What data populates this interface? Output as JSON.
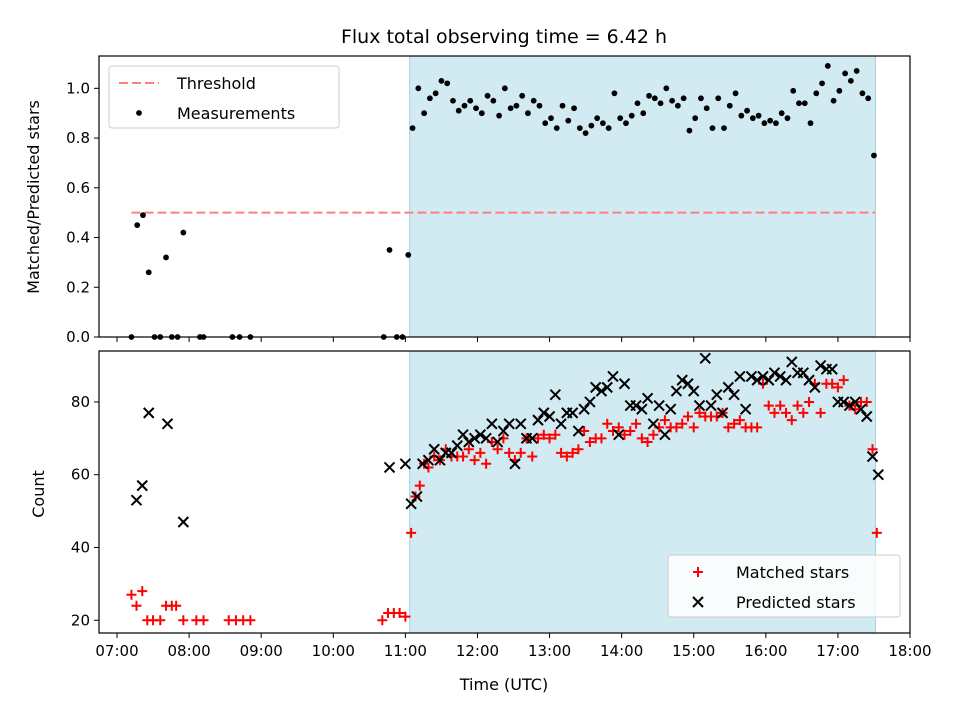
{
  "figure": {
    "title": "Flux total observing time = 6.42 h"
  },
  "chart_data": [
    {
      "type": "scatter",
      "panel": "top",
      "xlabel": "",
      "ylabel": "Matched/Predicted stars",
      "x_unit": "hours UTC",
      "xlim": [
        6.75,
        18.0
      ],
      "ylim": [
        0.0,
        1.13
      ],
      "yticks": [
        0.0,
        0.2,
        0.4,
        0.6,
        0.8,
        1.0
      ],
      "ytick_labels": [
        "0.0",
        "0.2",
        "0.4",
        "0.6",
        "0.8",
        "1.0"
      ],
      "shaded_span": [
        11.06,
        17.52
      ],
      "shade_color": "#add8e6",
      "threshold": {
        "name": "Threshold",
        "value": 0.5,
        "color": "#ff7f7f"
      },
      "legend": {
        "position": "top-left",
        "entries": [
          "Threshold",
          "Measurements"
        ]
      },
      "series": [
        {
          "name": "Measurements",
          "color": "#000000",
          "marker": "dot",
          "x": [
            7.2,
            7.28,
            7.36,
            7.44,
            7.52,
            7.6,
            7.68,
            7.76,
            7.84,
            7.92,
            8.15,
            8.2,
            8.6,
            8.7,
            8.85,
            10.7,
            10.78,
            10.88,
            10.96,
            11.04,
            11.1,
            11.18,
            11.26,
            11.34,
            11.42,
            11.5,
            11.58,
            11.66,
            11.74,
            11.82,
            11.9,
            11.98,
            12.06,
            12.14,
            12.22,
            12.3,
            12.38,
            12.46,
            12.54,
            12.62,
            12.7,
            12.78,
            12.86,
            12.94,
            13.02,
            13.1,
            13.18,
            13.26,
            13.34,
            13.42,
            13.5,
            13.58,
            13.66,
            13.74,
            13.82,
            13.9,
            13.98,
            14.06,
            14.14,
            14.22,
            14.3,
            14.38,
            14.46,
            14.54,
            14.62,
            14.7,
            14.78,
            14.86,
            14.94,
            15.02,
            15.1,
            15.18,
            15.26,
            15.34,
            15.42,
            15.5,
            15.58,
            15.66,
            15.74,
            15.82,
            15.9,
            15.98,
            16.06,
            16.14,
            16.22,
            16.3,
            16.38,
            16.46,
            16.54,
            16.62,
            16.7,
            16.78,
            16.86,
            16.94,
            17.02,
            17.1,
            17.18,
            17.26,
            17.34,
            17.42,
            17.5
          ],
          "y": [
            0.0,
            0.45,
            0.49,
            0.26,
            0.0,
            0.0,
            0.32,
            0.0,
            0.0,
            0.42,
            0.0,
            0.0,
            0.0,
            0.0,
            0.0,
            0.0,
            0.35,
            0.0,
            0.0,
            0.33,
            0.84,
            1.0,
            0.9,
            0.96,
            0.98,
            1.03,
            1.02,
            0.95,
            0.91,
            0.93,
            0.95,
            0.92,
            0.9,
            0.97,
            0.95,
            0.89,
            1.0,
            0.92,
            0.93,
            0.97,
            0.9,
            0.95,
            0.93,
            0.86,
            0.88,
            0.84,
            0.93,
            0.87,
            0.92,
            0.84,
            0.82,
            0.85,
            0.88,
            0.86,
            0.84,
            0.98,
            0.88,
            0.86,
            0.89,
            0.94,
            0.9,
            0.97,
            0.96,
            0.94,
            1.0,
            0.95,
            0.93,
            0.96,
            0.83,
            0.88,
            0.96,
            0.92,
            0.84,
            0.96,
            0.84,
            0.93,
            0.98,
            0.89,
            0.91,
            0.88,
            0.89,
            0.86,
            0.87,
            0.86,
            0.9,
            0.88,
            0.99,
            0.94,
            0.94,
            0.86,
            0.98,
            1.02,
            1.09,
            0.95,
            0.99,
            1.06,
            1.03,
            1.07,
            0.98,
            0.96,
            0.73
          ]
        }
      ]
    },
    {
      "type": "scatter",
      "panel": "bottom",
      "xlabel": "Time (UTC)",
      "ylabel": "Count",
      "x_unit": "hours UTC",
      "xlim": [
        6.75,
        18.0
      ],
      "ylim": [
        16.5,
        94
      ],
      "yticks": [
        20,
        40,
        60,
        80
      ],
      "ytick_labels": [
        "20",
        "40",
        "60",
        "80"
      ],
      "xticks": [
        7,
        8,
        9,
        10,
        11,
        12,
        13,
        14,
        15,
        16,
        17,
        18
      ],
      "xtick_labels": [
        "07:00",
        "08:00",
        "09:00",
        "10:00",
        "11:00",
        "12:00",
        "13:00",
        "14:00",
        "15:00",
        "16:00",
        "17:00",
        "18:00"
      ],
      "shaded_span": [
        11.06,
        17.52
      ],
      "shade_color": "#add8e6",
      "legend": {
        "position": "bottom-right",
        "entries": [
          "Matched stars",
          "Predicted stars"
        ]
      },
      "series": [
        {
          "name": "Matched stars",
          "color": "#ff0000",
          "marker": "plus",
          "x": [
            7.2,
            7.27,
            7.35,
            7.42,
            7.5,
            7.6,
            7.68,
            7.76,
            7.82,
            7.92,
            8.1,
            8.2,
            8.55,
            8.65,
            8.75,
            8.85,
            10.68,
            10.76,
            10.84,
            10.92,
            11.0,
            11.08,
            11.14,
            11.2,
            11.26,
            11.32,
            11.4,
            11.48,
            11.56,
            11.64,
            11.72,
            11.8,
            11.88,
            11.96,
            12.04,
            12.12,
            12.2,
            12.28,
            12.36,
            12.44,
            12.52,
            12.6,
            12.68,
            12.76,
            12.84,
            12.92,
            13.0,
            13.08,
            13.16,
            13.24,
            13.32,
            13.4,
            13.48,
            13.56,
            13.64,
            13.72,
            13.8,
            13.88,
            13.96,
            14.04,
            14.12,
            14.2,
            14.28,
            14.36,
            14.44,
            14.52,
            14.6,
            14.68,
            14.76,
            14.84,
            14.92,
            15.0,
            15.08,
            15.16,
            15.24,
            15.32,
            15.4,
            15.48,
            15.56,
            15.64,
            15.72,
            15.8,
            15.88,
            15.96,
            16.04,
            16.12,
            16.2,
            16.28,
            16.36,
            16.44,
            16.52,
            16.6,
            16.68,
            16.76,
            16.84,
            16.92,
            17.0,
            17.08,
            17.16,
            17.24,
            17.32,
            17.4,
            17.48,
            17.54
          ],
          "y": [
            27,
            24,
            28,
            20,
            20,
            20,
            24,
            24,
            24,
            20,
            20,
            20,
            20,
            20,
            20,
            20,
            20,
            22,
            22,
            22,
            21,
            44,
            54,
            57,
            63,
            62,
            65,
            64,
            67,
            65,
            65,
            65,
            67,
            64,
            66,
            63,
            69,
            67,
            70,
            66,
            64,
            66,
            70,
            65,
            70,
            71,
            70,
            71,
            66,
            65,
            66,
            67,
            72,
            69,
            70,
            70,
            74,
            72,
            73,
            71,
            72,
            74,
            70,
            69,
            71,
            73,
            75,
            73,
            73,
            74,
            76,
            73,
            77,
            76,
            76,
            76,
            77,
            73,
            74,
            75,
            73,
            73,
            73,
            85,
            79,
            77,
            79,
            77,
            75,
            79,
            77,
            80,
            85,
            77,
            85,
            85,
            84,
            86,
            79,
            78,
            80,
            80,
            67,
            44
          ]
        },
        {
          "name": "Predicted stars",
          "color": "#000000",
          "marker": "cross",
          "x": [
            7.27,
            7.35,
            7.44,
            7.7,
            7.92,
            10.78,
            11.0,
            11.08,
            11.16,
            11.24,
            11.32,
            11.4,
            11.48,
            11.56,
            11.64,
            11.72,
            11.8,
            11.88,
            11.96,
            12.04,
            12.12,
            12.2,
            12.28,
            12.36,
            12.44,
            12.52,
            12.6,
            12.68,
            12.76,
            12.84,
            12.92,
            13.0,
            13.08,
            13.16,
            13.24,
            13.32,
            13.4,
            13.48,
            13.56,
            13.64,
            13.72,
            13.8,
            13.88,
            13.96,
            14.04,
            14.12,
            14.2,
            14.28,
            14.36,
            14.44,
            14.52,
            14.6,
            14.68,
            14.76,
            14.84,
            14.92,
            15.0,
            15.08,
            15.16,
            15.24,
            15.32,
            15.4,
            15.48,
            15.56,
            15.64,
            15.72,
            15.8,
            15.88,
            15.96,
            16.04,
            16.12,
            16.2,
            16.28,
            16.36,
            16.44,
            16.52,
            16.6,
            16.68,
            16.76,
            16.84,
            16.92,
            17.0,
            17.08,
            17.16,
            17.24,
            17.32,
            17.4,
            17.48,
            17.56
          ],
          "y": [
            53,
            57,
            77,
            74,
            47,
            62,
            63,
            52,
            54,
            63,
            64,
            67,
            64,
            66,
            66,
            68,
            71,
            69,
            70,
            71,
            70,
            74,
            69,
            72,
            74,
            63,
            74,
            70,
            70,
            75,
            77,
            76,
            82,
            74,
            77,
            77,
            72,
            78,
            80,
            84,
            83,
            84,
            87,
            71,
            85,
            79,
            79,
            78,
            81,
            74,
            79,
            71,
            78,
            83,
            86,
            85,
            83,
            79,
            92,
            79,
            82,
            77,
            84,
            82,
            87,
            78,
            87,
            86,
            87,
            86,
            88,
            87,
            86,
            91,
            88,
            88,
            86,
            84,
            90,
            89,
            89,
            80,
            80,
            79,
            80,
            78,
            76,
            65,
            60
          ]
        }
      ]
    }
  ]
}
